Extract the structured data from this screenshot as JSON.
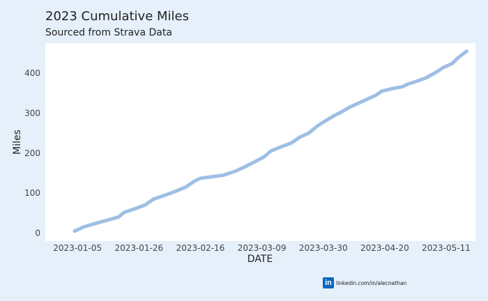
{
  "chart_data": {
    "type": "line",
    "title": "2023 Cumulative Miles",
    "subtitle": "Sourced from Strava Data",
    "xlabel": "DATE",
    "ylabel": "Miles",
    "x_tick_labels": [
      "2023-01-05",
      "2023-01-26",
      "2023-02-16",
      "2023-03-09",
      "2023-03-30",
      "2023-04-20",
      "2023-05-11"
    ],
    "y_ticks": [
      0,
      100,
      200,
      300,
      400
    ],
    "x_range_days": [
      -7,
      140
    ],
    "ylim": [
      -20,
      475
    ],
    "series": [
      {
        "name": "Cumulative Miles",
        "color": "#9ebfe4",
        "x_days_since_2023_01_01": [
          3,
          6,
          10,
          14,
          18,
          20,
          24,
          27,
          30,
          34,
          37,
          41,
          44,
          46,
          50,
          54,
          58,
          61,
          65,
          68,
          70,
          74,
          77,
          80,
          83,
          86,
          89,
          92,
          94,
          97,
          100,
          103,
          106,
          108,
          112,
          115,
          117,
          120,
          123,
          126,
          129,
          132,
          134,
          137
        ],
        "values": [
          5,
          15,
          24,
          32,
          40,
          52,
          62,
          70,
          85,
          95,
          103,
          115,
          130,
          137,
          141,
          145,
          155,
          165,
          180,
          192,
          205,
          217,
          225,
          240,
          250,
          268,
          282,
          295,
          302,
          315,
          325,
          335,
          345,
          355,
          362,
          366,
          373,
          380,
          388,
          400,
          414,
          424,
          438,
          455
        ]
      }
    ]
  },
  "credit": {
    "logo": "in",
    "text": "linkedin.com/in/alecnathan"
  }
}
